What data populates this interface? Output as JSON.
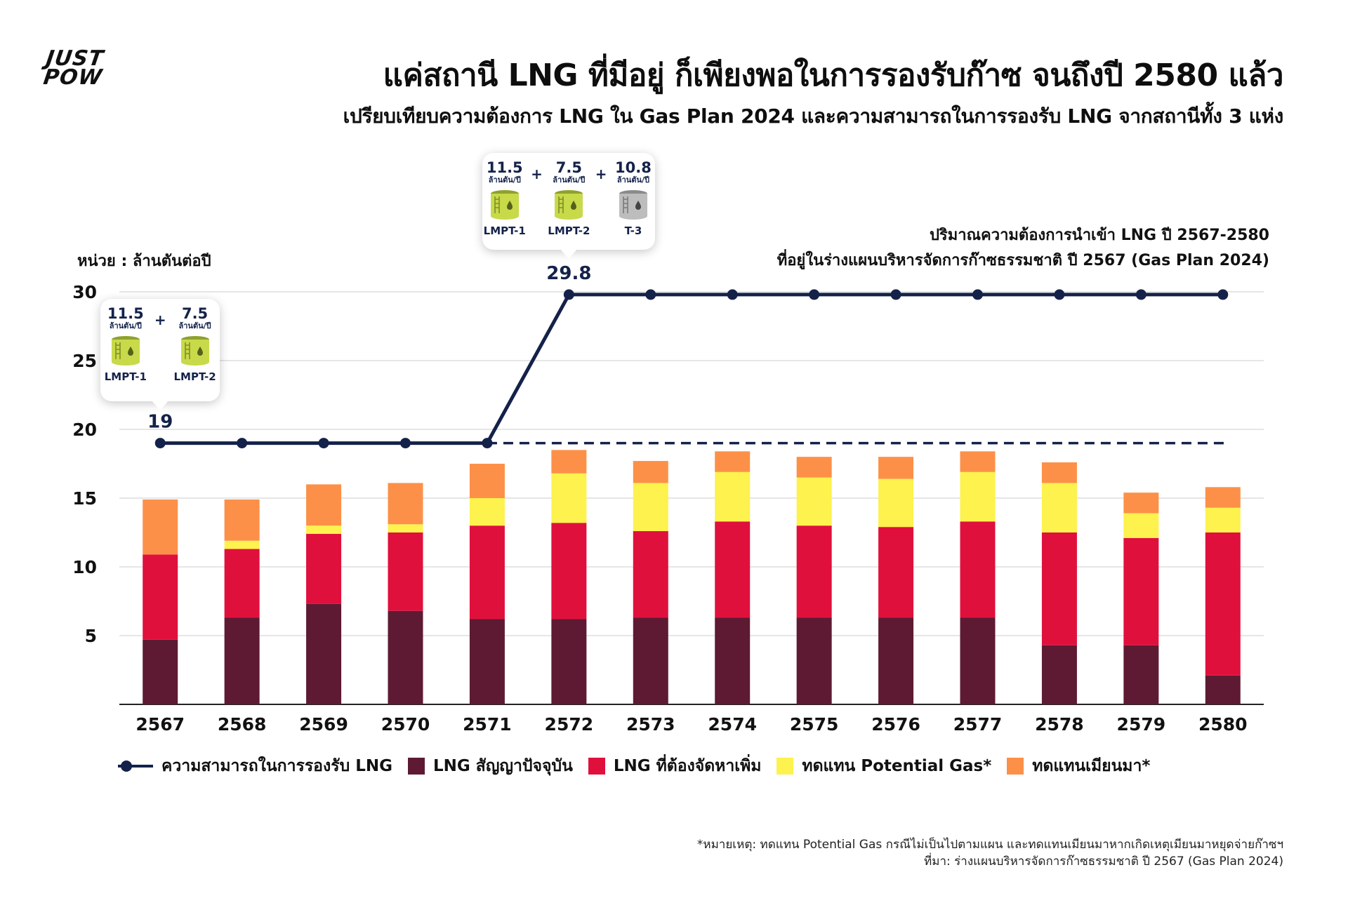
{
  "logo": {
    "line1": "JUST",
    "line2": "POW"
  },
  "title": "แค่สถานี LNG ที่มีอยู่ ก็เพียงพอในการรองรับก๊าซ จนถึงปี 2580 แล้ว",
  "subtitle": "เปรียบเทียบความต้องการ LNG ใน Gas Plan 2024 และความสามารถในการรองรับ LNG จากสถานีทั้ง 3 แห่ง",
  "unit_label": "หน่วย : ล้านตันต่อปี",
  "demand_note": {
    "line1": "ปริมาณความต้องการนำเข้า LNG ปี 2567-2580",
    "line2": "ที่อยู่ในร่างแผนบริหารจัดการก๊าซธรรมชาติ ปี 2567 (Gas Plan 2024)"
  },
  "colors": {
    "navy": "#14224a",
    "current_contract": "#5e1a33",
    "additional": "#e0103d",
    "potential_gas": "#fdf24e",
    "myanmar": "#fd9048",
    "tank_green": "#c8d94a",
    "tank_gray": "#bdbdbd"
  },
  "callouts": {
    "early": {
      "plus": "+",
      "tanks": [
        {
          "value": "11.5",
          "unit": "ล้านตัน/ปี",
          "name": "LMPT-1",
          "color": "#c8d94a"
        },
        {
          "value": "7.5",
          "unit": "ล้านตัน/ปี",
          "name": "LMPT-2",
          "color": "#c8d94a"
        }
      ]
    },
    "late": {
      "plus": "+",
      "tanks": [
        {
          "value": "11.5",
          "unit": "ล้านตัน/ปี",
          "name": "LMPT-1",
          "color": "#c8d94a"
        },
        {
          "value": "7.5",
          "unit": "ล้านตัน/ปี",
          "name": "LMPT-2",
          "color": "#c8d94a"
        },
        {
          "value": "10.8",
          "unit": "ล้านตัน/ปี",
          "name": "T-3",
          "color": "#bdbdbd"
        }
      ]
    }
  },
  "chart_data": {
    "type": "bar",
    "stacked": true,
    "categories": [
      "2567",
      "2568",
      "2569",
      "2570",
      "2571",
      "2572",
      "2573",
      "2574",
      "2575",
      "2576",
      "2577",
      "2578",
      "2579",
      "2580"
    ],
    "series": [
      {
        "name": "LNG สัญญาปัจจุบัน",
        "color": "#5e1a33",
        "values": [
          4.7,
          6.3,
          7.3,
          6.8,
          6.2,
          6.2,
          6.3,
          6.3,
          6.3,
          6.3,
          6.3,
          4.3,
          4.3,
          2.1
        ]
      },
      {
        "name": "LNG ที่ต้องจัดหาเพิ่ม",
        "color": "#e0103d",
        "values": [
          6.2,
          5.0,
          5.1,
          5.7,
          6.8,
          7.0,
          6.3,
          7.0,
          6.7,
          6.6,
          7.0,
          8.2,
          7.8,
          10.4
        ]
      },
      {
        "name": "ทดแทน Potential Gas*",
        "color": "#fdf24e",
        "values": [
          0.0,
          0.6,
          0.6,
          0.6,
          2.0,
          3.6,
          3.5,
          3.6,
          3.5,
          3.5,
          3.6,
          3.6,
          1.8,
          1.8
        ]
      },
      {
        "name": "ทดแทนเมียนมา*",
        "color": "#fd9048",
        "values": [
          4.0,
          3.0,
          3.0,
          3.0,
          2.5,
          1.7,
          1.6,
          1.5,
          1.5,
          1.6,
          1.5,
          1.5,
          1.5,
          1.5
        ]
      }
    ],
    "line": {
      "name": "ความสามารถในการรองรับ LNG",
      "color": "#14224a",
      "values": [
        19,
        19,
        19,
        19,
        19,
        29.8,
        29.8,
        29.8,
        29.8,
        29.8,
        29.8,
        29.8,
        29.8,
        29.8
      ],
      "dashed_reference": 19,
      "labels": [
        {
          "index": 0,
          "text": "19"
        },
        {
          "index": 5,
          "text": "29.8"
        }
      ]
    },
    "y_ticks": [
      "5",
      "10",
      "15",
      "20",
      "25",
      "30"
    ],
    "ylim": [
      0,
      30
    ],
    "ylabel": "หน่วย : ล้านตันต่อปี",
    "grid": true
  },
  "legend": {
    "line_label": "ความสามารถในการรองรับ LNG",
    "items": [
      {
        "label": "LNG สัญญาปัจจุบัน",
        "color": "#5e1a33"
      },
      {
        "label": "LNG ที่ต้องจัดหาเพิ่ม",
        "color": "#e0103d"
      },
      {
        "label": "ทดแทน Potential Gas*",
        "color": "#fdf24e"
      },
      {
        "label": "ทดแทนเมียนมา*",
        "color": "#fd9048"
      }
    ]
  },
  "footnote": {
    "line1": "*หมายเหตุ: ทดแทน Potential Gas กรณีไม่เป็นไปตามแผน และทดแทนเมียนมาหากเกิดเหตุเมียนมาหยุดจ่ายก๊าซฯ",
    "line2": "ที่มา: ร่างแผนบริหารจัดการก๊าซธรรมชาติ ปี 2567 (Gas Plan 2024)"
  }
}
